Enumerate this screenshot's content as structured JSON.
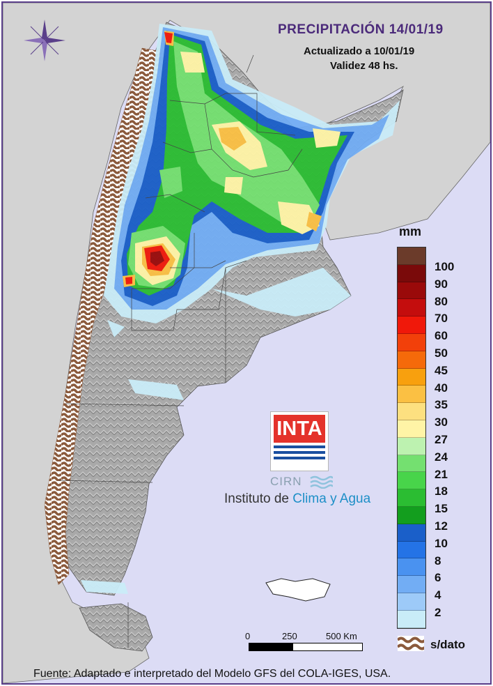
{
  "title": "PRECIPITACIÓN 14/01/19",
  "updated": "Actualizado a 10/01/19",
  "validity": "Validez 48 hs.",
  "legend": {
    "unit": "mm",
    "entries": [
      {
        "label": "",
        "color": "#6b3b2a"
      },
      {
        "label": "100",
        "color": "#7a0a0a"
      },
      {
        "label": "90",
        "color": "#9a0a0a"
      },
      {
        "label": "80",
        "color": "#c40d0d"
      },
      {
        "label": "70",
        "color": "#f0180a"
      },
      {
        "label": "60",
        "color": "#f2400a"
      },
      {
        "label": "50",
        "color": "#f56a0a"
      },
      {
        "label": "45",
        "color": "#f8a00e"
      },
      {
        "label": "40",
        "color": "#fbc043"
      },
      {
        "label": "35",
        "color": "#fde080"
      },
      {
        "label": "30",
        "color": "#fff4a6"
      },
      {
        "label": "27",
        "color": "#bdf2b0"
      },
      {
        "label": "24",
        "color": "#74e070"
      },
      {
        "label": "21",
        "color": "#48d44a"
      },
      {
        "label": "18",
        "color": "#2bbd32"
      },
      {
        "label": "15",
        "color": "#139e1e"
      },
      {
        "label": "12",
        "color": "#1a5fc9"
      },
      {
        "label": "10",
        "color": "#2473e6"
      },
      {
        "label": "8",
        "color": "#4a92f0"
      },
      {
        "label": "6",
        "color": "#72adf4"
      },
      {
        "label": "4",
        "color": "#9dcaf8"
      },
      {
        "label": "2",
        "color": "#c9ecf8"
      }
    ],
    "nodata_label": "s/dato",
    "nodata_color": "#8b5a3c"
  },
  "scale_bar": {
    "labels": [
      "0",
      "250",
      "500 Km"
    ]
  },
  "logo": {
    "brand": "INTA",
    "cirn": "CIRN",
    "institute_a": "Instituto de ",
    "institute_b": "Clima y Agua"
  },
  "footer": "Fuente: Adaptado e interpretado del Modelo GFS del COLA-IGES, USA.",
  "colors": {
    "ocean": "#dcdcf5",
    "land_neighbors": "#d3d3d3",
    "argentina_relief": "#a8a8a8",
    "frame": "#5a3f8a"
  }
}
